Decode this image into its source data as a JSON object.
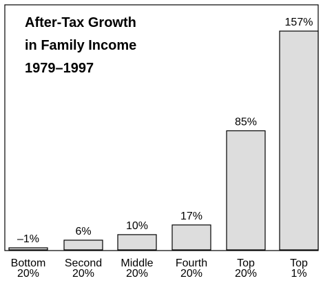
{
  "chart_data": {
    "type": "bar",
    "title_lines": [
      "After-Tax Growth",
      "in Family Income",
      "1979–1997"
    ],
    "categories": [
      [
        "Bottom",
        "20%"
      ],
      [
        "Second",
        "20%"
      ],
      [
        "Middle",
        "20%"
      ],
      [
        "Fourth",
        "20%"
      ],
      [
        "Top",
        "20%"
      ],
      [
        "Top",
        "1%"
      ]
    ],
    "values": [
      -1,
      6,
      10,
      17,
      85,
      157
    ],
    "value_labels": [
      "–1%",
      "6%",
      "10%",
      "17%",
      "85%",
      "157%"
    ],
    "ylim": [
      -1,
      163
    ],
    "grid": false,
    "colors": {
      "bar_fill": "#dddddd",
      "bar_stroke": "#000000"
    }
  }
}
